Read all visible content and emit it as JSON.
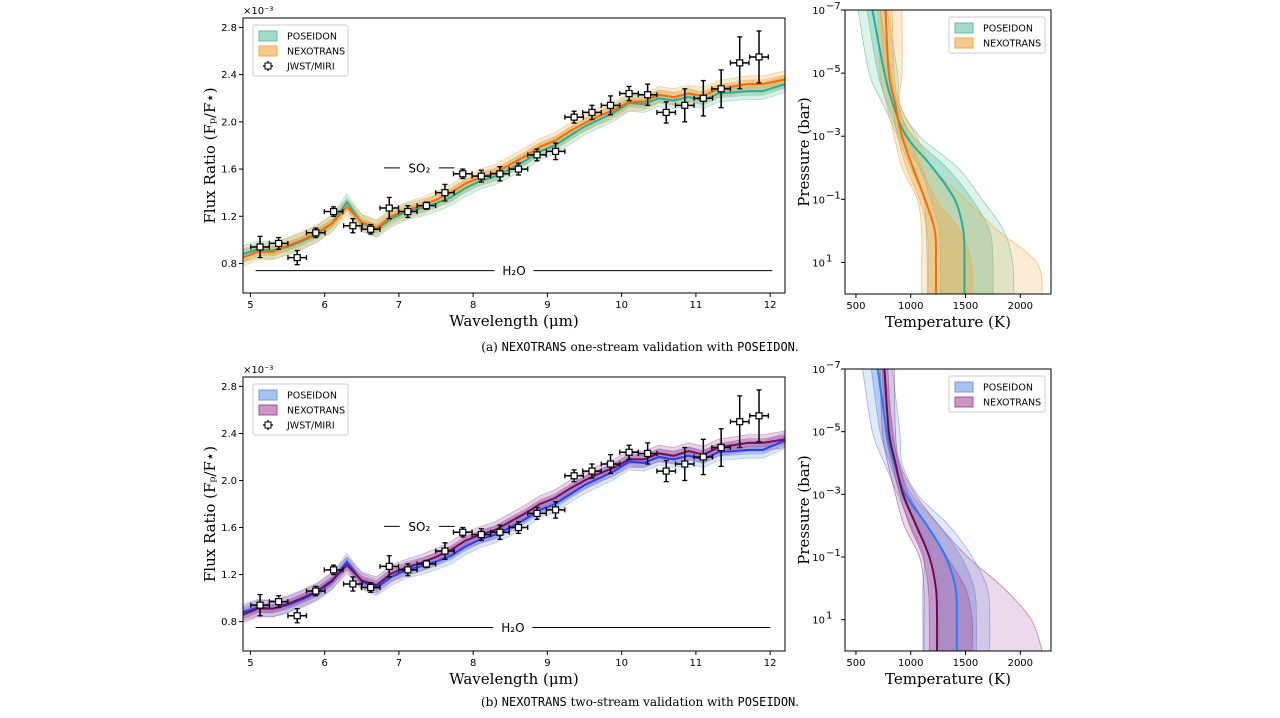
{
  "captions": [
    {
      "prefix": "(a) ",
      "code1": "NEXOTRANS",
      "middle": " one-stream validation with ",
      "code2": "POSEIDON",
      "suffix": "."
    },
    {
      "prefix": "(b) ",
      "code1": "NEXOTRANS",
      "middle": " two-stream validation with ",
      "code2": "POSEIDON",
      "suffix": "."
    }
  ],
  "chart_data": [
    {
      "type": "line",
      "panel": "a-spectrum",
      "xlabel": "Wavelength (μm)",
      "ylabel": "Flux Ratio (Fₚ/F⋆)",
      "y_multiplier": "×10⁻³",
      "xlim": [
        4.9,
        12.2
      ],
      "ylim": [
        0.55,
        2.88
      ],
      "xticks": [
        5,
        6,
        7,
        8,
        9,
        10,
        11,
        12
      ],
      "yticks": [
        "0.8",
        "1.2",
        "1.6",
        "2.0",
        "2.4",
        "2.8"
      ],
      "legend_placement": "top-left",
      "annotations": [
        {
          "label": "SO₂",
          "x_range": [
            6.8,
            7.75
          ],
          "y": 1.61
        },
        {
          "label": "H₂O",
          "x_range": [
            5.07,
            12.03
          ],
          "y": 0.74
        }
      ],
      "model_x": [
        4.9,
        5.1,
        5.3,
        5.5,
        5.7,
        5.9,
        6.1,
        6.3,
        6.5,
        6.7,
        6.9,
        7.1,
        7.3,
        7.5,
        7.7,
        7.9,
        8.1,
        8.3,
        8.5,
        8.7,
        8.9,
        9.1,
        9.3,
        9.5,
        9.7,
        9.9,
        10.1,
        10.3,
        10.5,
        10.7,
        10.9,
        11.1,
        11.3,
        11.5,
        11.7,
        11.9,
        12.2
      ],
      "series": [
        {
          "name": "POSEIDON",
          "line_color": "#19b3a6",
          "band_color": "#66c2a5",
          "band_1sigma": 0.035,
          "band_2sigma": 0.07,
          "values": [
            0.88,
            0.92,
            0.91,
            0.94,
            0.99,
            1.05,
            1.14,
            1.32,
            1.14,
            1.09,
            1.18,
            1.24,
            1.27,
            1.31,
            1.36,
            1.44,
            1.5,
            1.54,
            1.6,
            1.67,
            1.75,
            1.8,
            1.88,
            1.96,
            2.02,
            2.08,
            2.16,
            2.15,
            2.2,
            2.18,
            2.21,
            2.18,
            2.24,
            2.25,
            2.26,
            2.26,
            2.32
          ]
        },
        {
          "name": "NEXOTRANS",
          "line_color": "#ff6a00",
          "band_color": "#f5a742",
          "band_1sigma": 0.035,
          "band_2sigma": 0.07,
          "values": [
            0.85,
            0.9,
            0.9,
            0.95,
            1.0,
            1.06,
            1.14,
            1.28,
            1.15,
            1.1,
            1.2,
            1.25,
            1.29,
            1.34,
            1.4,
            1.48,
            1.53,
            1.57,
            1.64,
            1.71,
            1.79,
            1.84,
            1.92,
            1.99,
            2.05,
            2.1,
            2.17,
            2.17,
            2.23,
            2.21,
            2.24,
            2.22,
            2.28,
            2.3,
            2.32,
            2.32,
            2.36
          ]
        }
      ],
      "observations": {
        "name": "JWST/MIRI",
        "x": [
          5.13,
          5.38,
          5.63,
          5.88,
          6.12,
          6.38,
          6.62,
          6.87,
          7.12,
          7.37,
          7.62,
          7.86,
          8.11,
          8.36,
          8.61,
          8.86,
          9.11,
          9.36,
          9.6,
          9.85,
          10.1,
          10.35,
          10.6,
          10.85,
          11.1,
          11.34,
          11.59,
          11.85
        ],
        "y": [
          0.94,
          0.97,
          0.85,
          1.06,
          1.24,
          1.12,
          1.09,
          1.27,
          1.24,
          1.29,
          1.4,
          1.56,
          1.54,
          1.56,
          1.6,
          1.72,
          1.75,
          2.04,
          2.08,
          2.14,
          2.24,
          2.23,
          2.08,
          2.14,
          2.2,
          2.28,
          2.5,
          2.55
        ],
        "yerr": [
          0.09,
          0.05,
          0.06,
          0.04,
          0.04,
          0.06,
          0.04,
          0.09,
          0.05,
          0.03,
          0.07,
          0.04,
          0.05,
          0.06,
          0.05,
          0.05,
          0.07,
          0.05,
          0.06,
          0.08,
          0.06,
          0.09,
          0.09,
          0.14,
          0.15,
          0.16,
          0.22,
          0.22
        ],
        "xerr": 0.125
      }
    },
    {
      "type": "line",
      "panel": "a-pt-profile",
      "xlabel": "Temperature (K)",
      "ylabel": "Pressure (bar)",
      "xlim": [
        400,
        2280
      ],
      "ylim": [
        1e-07,
        100
      ],
      "y_scale": "log",
      "y_inverted": true,
      "xticks": [
        500,
        1000,
        1500,
        2000
      ],
      "yticks": [
        {
          "exp": -7,
          "label": "10",
          "sup": "−7"
        },
        {
          "exp": -5,
          "label": "10",
          "sup": "−5"
        },
        {
          "exp": -3,
          "label": "10",
          "sup": "−3"
        },
        {
          "exp": -1,
          "label": "10",
          "sup": "−1"
        },
        {
          "exp": 1,
          "label": "10",
          "sup": "1"
        }
      ],
      "legend_placement": "top-right",
      "pressure": [
        1e-07,
        1e-05,
        0.0001,
        0.001,
        0.01,
        0.1,
        1,
        10,
        100
      ],
      "series": [
        {
          "name": "POSEIDON",
          "line_color": "#19b3a6",
          "band_color": "#66c2a5",
          "median": [
            650,
            760,
            840,
            960,
            1200,
            1400,
            1480,
            1490,
            1490
          ],
          "sigma1_lo": [
            600,
            700,
            790,
            900,
            1080,
            1180,
            1260,
            1270,
            1270
          ],
          "sigma1_hi": [
            720,
            820,
            880,
            1020,
            1330,
            1560,
            1720,
            1750,
            1750
          ],
          "sigma2_lo": [
            520,
            620,
            750,
            880,
            1000,
            1120,
            1140,
            1150,
            1150
          ],
          "sigma2_hi": [
            780,
            880,
            900,
            1080,
            1430,
            1650,
            1850,
            1930,
            1940
          ]
        },
        {
          "name": "NEXOTRANS",
          "line_color": "#ff6a00",
          "band_color": "#f5a742",
          "median": [
            770,
            800,
            860,
            920,
            1020,
            1130,
            1220,
            1230,
            1230
          ],
          "sigma1_lo": [
            720,
            760,
            830,
            880,
            960,
            1080,
            1150,
            1160,
            1160
          ],
          "sigma1_hi": [
            830,
            850,
            890,
            980,
            1100,
            1230,
            1450,
            1550,
            1560
          ],
          "sigma2_lo": [
            700,
            720,
            780,
            850,
            920,
            1060,
            1100,
            1100,
            1100
          ],
          "sigma2_hi": [
            920,
            920,
            900,
            1050,
            1200,
            1500,
            1800,
            2150,
            2200
          ]
        }
      ]
    },
    {
      "type": "line",
      "panel": "b-spectrum",
      "xlabel": "Wavelength (μm)",
      "ylabel": "Flux Ratio (Fₚ/F⋆)",
      "y_multiplier": "×10⁻³",
      "xlim": [
        4.9,
        12.2
      ],
      "ylim": [
        0.55,
        2.88
      ],
      "xticks": [
        5,
        6,
        7,
        8,
        9,
        10,
        11,
        12
      ],
      "yticks": [
        "0.8",
        "1.2",
        "1.6",
        "2.0",
        "2.4",
        "2.8"
      ],
      "legend_placement": "top-left",
      "annotations": [
        {
          "label": "SO₂",
          "x_range": [
            6.8,
            7.75
          ],
          "y": 1.61
        },
        {
          "label": "H₂O",
          "x_range": [
            5.07,
            12.0
          ],
          "y": 0.75
        }
      ],
      "model_x": [
        4.9,
        5.1,
        5.3,
        5.5,
        5.7,
        5.9,
        6.1,
        6.3,
        6.5,
        6.7,
        6.9,
        7.1,
        7.3,
        7.5,
        7.7,
        7.9,
        8.1,
        8.3,
        8.5,
        8.7,
        8.9,
        9.1,
        9.3,
        9.5,
        9.7,
        9.9,
        10.1,
        10.3,
        10.5,
        10.7,
        10.9,
        11.1,
        11.3,
        11.5,
        11.7,
        11.9,
        12.2
      ],
      "series": [
        {
          "name": "POSEIDON",
          "line_color": "#1f3fff",
          "band_color": "#6f9be8",
          "band_1sigma": 0.035,
          "band_2sigma": 0.07,
          "values": [
            0.88,
            0.92,
            0.91,
            0.94,
            0.99,
            1.05,
            1.14,
            1.31,
            1.14,
            1.09,
            1.18,
            1.24,
            1.27,
            1.31,
            1.36,
            1.44,
            1.5,
            1.54,
            1.6,
            1.67,
            1.75,
            1.8,
            1.88,
            1.96,
            2.02,
            2.08,
            2.16,
            2.15,
            2.2,
            2.18,
            2.21,
            2.18,
            2.24,
            2.25,
            2.26,
            2.26,
            2.34
          ]
        },
        {
          "name": "NEXOTRANS",
          "line_color": "#7a0a5e",
          "band_color": "#a8509c",
          "band_1sigma": 0.035,
          "band_2sigma": 0.07,
          "values": [
            0.86,
            0.91,
            0.91,
            0.95,
            1.0,
            1.06,
            1.15,
            1.28,
            1.15,
            1.11,
            1.21,
            1.26,
            1.3,
            1.35,
            1.41,
            1.49,
            1.54,
            1.58,
            1.65,
            1.72,
            1.8,
            1.85,
            1.93,
            2.0,
            2.06,
            2.11,
            2.18,
            2.18,
            2.23,
            2.21,
            2.25,
            2.22,
            2.28,
            2.3,
            2.32,
            2.32,
            2.35
          ]
        }
      ],
      "observations": {
        "name": "JWST/MIRI",
        "x": [
          5.13,
          5.38,
          5.63,
          5.88,
          6.12,
          6.38,
          6.62,
          6.87,
          7.12,
          7.37,
          7.62,
          7.86,
          8.11,
          8.36,
          8.61,
          8.86,
          9.11,
          9.36,
          9.6,
          9.85,
          10.1,
          10.35,
          10.6,
          10.85,
          11.1,
          11.34,
          11.59,
          11.85
        ],
        "y": [
          0.94,
          0.97,
          0.85,
          1.06,
          1.24,
          1.12,
          1.09,
          1.27,
          1.24,
          1.29,
          1.4,
          1.56,
          1.54,
          1.56,
          1.6,
          1.72,
          1.75,
          2.04,
          2.08,
          2.14,
          2.24,
          2.23,
          2.08,
          2.14,
          2.2,
          2.28,
          2.5,
          2.55
        ],
        "yerr": [
          0.09,
          0.05,
          0.06,
          0.04,
          0.04,
          0.06,
          0.04,
          0.09,
          0.05,
          0.03,
          0.07,
          0.04,
          0.05,
          0.06,
          0.05,
          0.05,
          0.07,
          0.05,
          0.06,
          0.08,
          0.06,
          0.09,
          0.09,
          0.14,
          0.15,
          0.16,
          0.22,
          0.22
        ],
        "xerr": 0.125
      }
    },
    {
      "type": "line",
      "panel": "b-pt-profile",
      "xlabel": "Temperature (K)",
      "ylabel": "Pressure (bar)",
      "xlim": [
        400,
        2280
      ],
      "ylim": [
        1e-07,
        100
      ],
      "y_scale": "log",
      "y_inverted": true,
      "xticks": [
        500,
        1000,
        1500,
        2000
      ],
      "yticks": [
        {
          "exp": -7,
          "label": "10",
          "sup": "−7"
        },
        {
          "exp": -5,
          "label": "10",
          "sup": "−5"
        },
        {
          "exp": -3,
          "label": "10",
          "sup": "−3"
        },
        {
          "exp": -1,
          "label": "10",
          "sup": "−1"
        },
        {
          "exp": 1,
          "label": "10",
          "sup": "1"
        }
      ],
      "legend_placement": "top-right",
      "pressure": [
        1e-07,
        1e-05,
        0.0001,
        0.001,
        0.01,
        0.1,
        1,
        10,
        100
      ],
      "series": [
        {
          "name": "POSEIDON",
          "line_color": "#1f7fff",
          "band_color": "#6f9be8",
          "median": [
            700,
            780,
            850,
            950,
            1150,
            1320,
            1410,
            1420,
            1420
          ],
          "sigma1_lo": [
            640,
            720,
            810,
            910,
            1060,
            1190,
            1250,
            1260,
            1260
          ],
          "sigma1_hi": [
            760,
            840,
            890,
            1010,
            1260,
            1460,
            1580,
            1600,
            1600
          ],
          "sigma2_lo": [
            560,
            650,
            760,
            880,
            1000,
            1120,
            1110,
            1110,
            1110
          ],
          "sigma2_hi": [
            830,
            900,
            920,
            1060,
            1350,
            1560,
            1700,
            1720,
            1720
          ]
        },
        {
          "name": "NEXOTRANS",
          "line_color": "#6a0a4a",
          "band_color": "#a8509c",
          "median": [
            760,
            800,
            860,
            930,
            1050,
            1170,
            1230,
            1240,
            1240
          ],
          "sigma1_lo": [
            740,
            770,
            830,
            900,
            990,
            1110,
            1160,
            1170,
            1170
          ],
          "sigma1_hi": [
            790,
            830,
            890,
            980,
            1150,
            1330,
            1500,
            1560,
            1560
          ],
          "sigma2_lo": [
            720,
            740,
            790,
            860,
            940,
            1080,
            1120,
            1120,
            1120
          ],
          "sigma2_hi": [
            850,
            860,
            900,
            1040,
            1260,
            1520,
            1850,
            2100,
            2200
          ]
        }
      ]
    }
  ]
}
